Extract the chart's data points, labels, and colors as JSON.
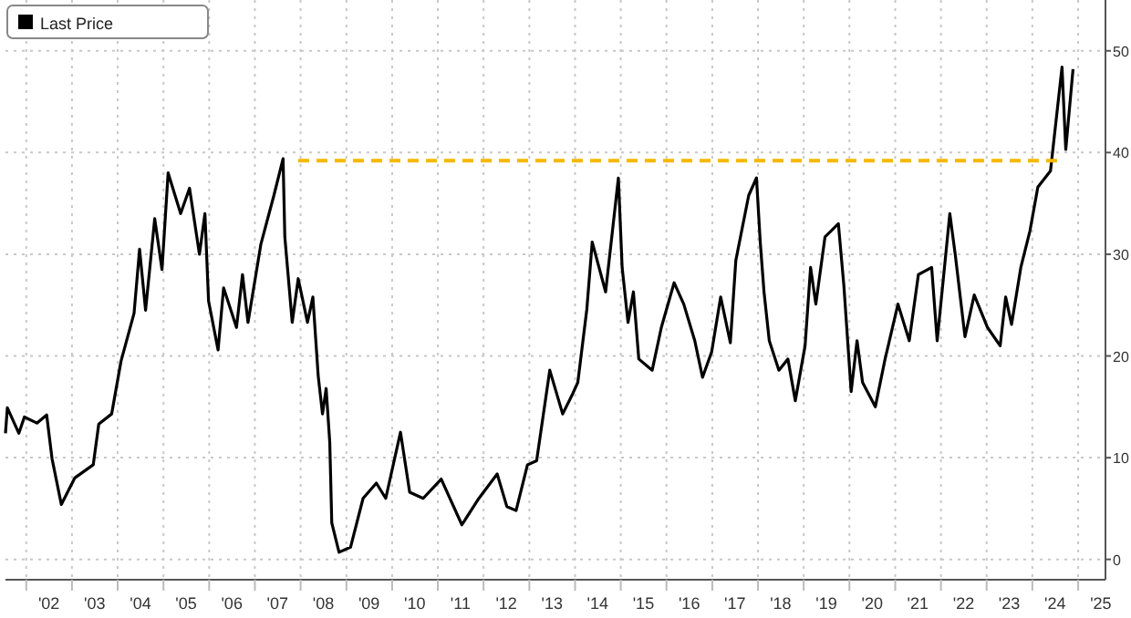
{
  "chart_data": {
    "type": "line",
    "legend": "top left",
    "grid": true,
    "line_style": "solid",
    "xlim": [
      "2001-07-19",
      "2025-08-07"
    ],
    "ylim": [
      -2,
      55
    ],
    "yticks": [
      0,
      10,
      20,
      30,
      40,
      50
    ],
    "xticks": [
      {
        "value": "2002-01-01",
        "label": null
      },
      {
        "value": "2002-07-01",
        "label": "'02"
      },
      {
        "value": "2003-01-01",
        "label": null
      },
      {
        "value": "2003-07-01",
        "label": "'03"
      },
      {
        "value": "2004-01-01",
        "label": null
      },
      {
        "value": "2004-07-01",
        "label": "'04"
      },
      {
        "value": "2005-01-01",
        "label": null
      },
      {
        "value": "2005-07-01",
        "label": "'05"
      },
      {
        "value": "2006-01-01",
        "label": null
      },
      {
        "value": "2006-07-01",
        "label": "'06"
      },
      {
        "value": "2007-01-01",
        "label": null
      },
      {
        "value": "2007-07-01",
        "label": "'07"
      },
      {
        "value": "2008-01-01",
        "label": null
      },
      {
        "value": "2008-07-01",
        "label": "'08"
      },
      {
        "value": "2009-01-01",
        "label": null
      },
      {
        "value": "2009-07-01",
        "label": "'09"
      },
      {
        "value": "2010-01-01",
        "label": null
      },
      {
        "value": "2010-07-01",
        "label": "'10"
      },
      {
        "value": "2011-01-01",
        "label": null
      },
      {
        "value": "2011-07-01",
        "label": "'11"
      },
      {
        "value": "2012-01-01",
        "label": null
      },
      {
        "value": "2012-07-01",
        "label": "'12"
      },
      {
        "value": "2013-01-01",
        "label": null
      },
      {
        "value": "2013-07-01",
        "label": "'13"
      },
      {
        "value": "2014-01-01",
        "label": null
      },
      {
        "value": "2014-07-01",
        "label": "'14"
      },
      {
        "value": "2015-01-01",
        "label": null
      },
      {
        "value": "2015-07-01",
        "label": "'15"
      },
      {
        "value": "2016-01-01",
        "label": null
      },
      {
        "value": "2016-07-01",
        "label": "'16"
      },
      {
        "value": "2017-01-01",
        "label": null
      },
      {
        "value": "2017-07-01",
        "label": "'17"
      },
      {
        "value": "2018-01-01",
        "label": null
      },
      {
        "value": "2018-07-01",
        "label": "'18"
      },
      {
        "value": "2019-01-01",
        "label": null
      },
      {
        "value": "2019-07-01",
        "label": "'19"
      },
      {
        "value": "2020-01-01",
        "label": null
      },
      {
        "value": "2020-07-01",
        "label": "'20"
      },
      {
        "value": "2021-01-01",
        "label": null
      },
      {
        "value": "2021-07-01",
        "label": "'21"
      },
      {
        "value": "2022-01-01",
        "label": null
      },
      {
        "value": "2022-07-01",
        "label": "'22"
      },
      {
        "value": "2023-01-01",
        "label": null
      },
      {
        "value": "2023-07-01",
        "label": "'23"
      },
      {
        "value": "2024-01-01",
        "label": null
      },
      {
        "value": "2024-07-01",
        "label": "'24"
      },
      {
        "value": "2025-01-01",
        "label": null
      },
      {
        "value": "2025-07-01",
        "label": "'25"
      }
    ],
    "series": [
      {
        "name": "Last Price",
        "color": "#000000",
        "x": [
          "2001-07-19",
          "2001-08-03",
          "2001-11-03",
          "2001-12-17",
          "2002-03-27",
          "2002-06-13",
          "2002-07-26",
          "2002-10-08",
          "2003-01-23",
          "2003-06-20",
          "2003-08-03",
          "2003-11-14",
          "2004-01-28",
          "2004-05-11",
          "2004-06-24",
          "2004-08-11",
          "2004-10-23",
          "2004-12-20",
          "2005-02-07",
          "2005-05-18",
          "2005-07-28",
          "2005-10-15",
          "2005-11-28",
          "2005-12-27",
          "2006-03-13",
          "2006-04-26",
          "2006-08-07",
          "2006-09-24",
          "2006-11-07",
          "2007-02-18",
          "2007-06-02",
          "2007-08-14",
          "2007-08-28",
          "2007-10-26",
          "2007-12-13",
          "2008-02-25",
          "2008-04-08",
          "2008-05-21",
          "2008-06-24",
          "2008-07-23",
          "2008-08-21",
          "2008-09-06",
          "2008-11-03",
          "2009-02-03",
          "2009-05-14",
          "2009-08-28",
          "2009-11-11",
          "2010-03-09",
          "2010-05-21",
          "2010-09-06",
          "2011-01-28",
          "2011-07-12",
          "2011-11-25",
          "2012-04-19",
          "2012-07-05",
          "2012-09-17",
          "2012-12-17",
          "2013-02-28",
          "2013-06-13",
          "2013-09-24",
          "2013-12-06",
          "2014-01-23",
          "2014-04-05",
          "2014-05-18",
          "2014-09-02",
          "2014-12-13",
          "2015-01-12",
          "2015-02-28",
          "2015-04-12",
          "2015-05-25",
          "2015-09-09",
          "2015-11-21",
          "2016-03-02",
          "2016-05-18",
          "2016-08-14",
          "2016-10-15",
          "2016-12-27",
          "2017-03-09",
          "2017-05-25",
          "2017-07-08",
          "2017-10-19",
          "2017-12-20",
          "2018-01-19",
          "2018-02-18",
          "2018-04-01",
          "2018-06-17",
          "2018-08-28",
          "2018-10-26",
          "2019-01-12",
          "2019-02-25",
          "2019-04-08",
          "2019-06-20",
          "2019-10-05",
          "2019-11-18",
          "2020-01-15",
          "2020-03-02",
          "2020-04-15",
          "2020-07-26",
          "2020-10-12",
          "2021-01-23",
          "2021-04-23",
          "2021-07-05",
          "2021-10-19",
          "2021-12-02",
          "2022-03-13",
          "2022-04-26",
          "2022-07-12",
          "2022-09-24",
          "2023-01-08",
          "2023-04-19",
          "2023-06-02",
          "2023-07-19",
          "2023-10-01",
          "2023-12-13",
          "2024-02-14",
          "2024-05-25",
          "2024-08-25",
          "2024-09-24",
          "2024-11-21"
        ],
        "values": [
          12.4,
          14.9,
          12.4,
          14,
          13.4,
          14.2,
          9.9,
          5.4,
          8,
          9.3,
          13.3,
          14.3,
          19.5,
          24.2,
          30.5,
          24.5,
          33.5,
          28.5,
          38,
          34,
          36.5,
          30,
          34,
          25.4,
          20.6,
          26.7,
          22.8,
          28,
          23.3,
          31,
          35.8,
          39.4,
          31.7,
          23.3,
          27.6,
          23.3,
          25.8,
          18,
          14.3,
          16.8,
          11.5,
          3.6,
          0.7,
          1.2,
          6,
          7.5,
          6,
          12.5,
          6.6,
          6,
          7.9,
          3.4,
          6,
          8.4,
          5.2,
          4.8,
          9.3,
          9.7,
          18.6,
          14.3,
          16.1,
          17.4,
          24.6,
          31.2,
          26.3,
          37.5,
          28.7,
          23.3,
          26.3,
          19.7,
          18.6,
          22.8,
          27.2,
          25.1,
          21.5,
          17.9,
          20.4,
          25.8,
          21.3,
          29.4,
          35.8,
          37.5,
          31.2,
          26.3,
          21.5,
          18.6,
          19.7,
          15.6,
          21,
          28.7,
          25.1,
          31.7,
          33,
          26.9,
          16.5,
          21.5,
          17.4,
          15,
          19.7,
          25.1,
          21.5,
          28,
          28.7,
          21.5,
          34,
          29.9,
          21.9,
          26,
          22.8,
          21,
          25.8,
          23.1,
          28.7,
          32.3,
          36.6,
          38.2,
          48.4,
          40.3,
          48.2
        ]
      },
      {
        "color": "#f5b800",
        "line_style": "dashed",
        "x": [
          "2007-12-13",
          "2024-08-07"
        ],
        "values": [
          39.2,
          39.2
        ]
      }
    ]
  }
}
